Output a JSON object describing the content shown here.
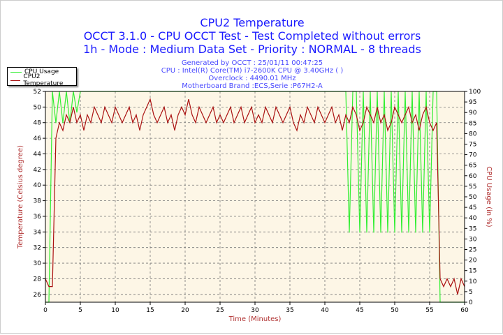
{
  "header": {
    "title": "CPU2 Temperature",
    "line2": "OCCT 3.1.0 - CPU OCCT Test - Test Completed without errors",
    "line3": "1h - Mode : Medium Data Set - Priority : NORMAL - 8 threads"
  },
  "info": [
    "Generated by OCCT : 25/01/11 00:47:25",
    "CPU : Intel(R) Core(TM) i7-2600K CPU @ 3.40GHz (  )",
    "Overclock : 4490.01 MHz",
    "Motherboard Brand :ECS,Serie :P67H2-A"
  ],
  "chart_data": {
    "type": "line",
    "title": "CPU2 Temperature",
    "xlabel": "Time (Minutes)",
    "ylabel": "Temperature (Celsius degree)",
    "y2label": "CPU Usage (in %)",
    "xlim": [
      0,
      60
    ],
    "ylim": [
      25,
      52
    ],
    "y2lim": [
      0,
      100
    ],
    "xticks": [
      0,
      5,
      10,
      15,
      20,
      25,
      30,
      35,
      40,
      45,
      50,
      55,
      60
    ],
    "yticks": [
      26,
      28,
      30,
      32,
      34,
      36,
      38,
      40,
      42,
      44,
      46,
      48,
      50,
      52
    ],
    "y2ticks": [
      0,
      5,
      10,
      15,
      20,
      25,
      30,
      35,
      40,
      45,
      50,
      55,
      60,
      65,
      70,
      75,
      80,
      85,
      90,
      95,
      100
    ],
    "grid": true,
    "legend_position": "top-left",
    "x_step": 0.5,
    "series": [
      {
        "name": "CPU Usage",
        "axis": "right",
        "color": "#33ee33",
        "values": [
          0,
          0,
          100,
          85,
          100,
          85,
          100,
          85,
          100,
          90,
          100,
          100,
          100,
          100,
          100,
          100,
          100,
          100,
          100,
          100,
          100,
          100,
          100,
          100,
          100,
          100,
          100,
          100,
          100,
          100,
          100,
          100,
          100,
          100,
          100,
          100,
          100,
          100,
          100,
          100,
          100,
          100,
          100,
          100,
          100,
          100,
          100,
          100,
          100,
          100,
          100,
          100,
          100,
          100,
          100,
          100,
          100,
          100,
          100,
          100,
          100,
          100,
          100,
          100,
          100,
          100,
          100,
          100,
          100,
          100,
          100,
          100,
          100,
          100,
          100,
          100,
          100,
          100,
          100,
          100,
          100,
          100,
          100,
          100,
          100,
          100,
          100,
          33,
          100,
          100,
          33,
          100,
          33,
          100,
          33,
          100,
          33,
          100,
          33,
          100,
          33,
          100,
          33,
          100,
          33,
          100,
          33,
          100,
          33,
          100,
          33,
          100,
          100,
          0,
          0,
          0,
          0,
          0,
          0,
          0,
          0
        ]
      },
      {
        "name": "CPU2 Temperature",
        "axis": "left",
        "color": "#aa1111",
        "values": [
          28,
          27,
          27,
          46,
          48,
          47,
          49,
          48,
          50,
          48,
          49,
          47,
          49,
          48,
          50,
          49,
          48,
          50,
          49,
          48,
          50,
          49,
          48,
          49,
          50,
          48,
          49,
          47,
          49,
          50,
          51,
          49,
          48,
          49,
          50,
          48,
          49,
          47,
          49,
          50,
          49,
          51,
          49,
          48,
          50,
          49,
          48,
          49,
          50,
          48,
          49,
          48,
          49,
          50,
          48,
          49,
          50,
          48,
          49,
          50,
          48,
          49,
          48,
          50,
          49,
          48,
          50,
          49,
          48,
          49,
          50,
          48,
          47,
          49,
          48,
          50,
          49,
          48,
          50,
          49,
          48,
          49,
          50,
          48,
          49,
          47,
          49,
          48,
          50,
          49,
          47,
          48,
          50,
          49,
          48,
          50,
          48,
          49,
          47,
          48,
          50,
          49,
          48,
          49,
          50,
          48,
          49,
          47,
          49,
          50,
          48,
          47,
          48,
          28,
          27,
          28,
          27,
          28,
          26,
          28,
          27
        ]
      }
    ]
  }
}
